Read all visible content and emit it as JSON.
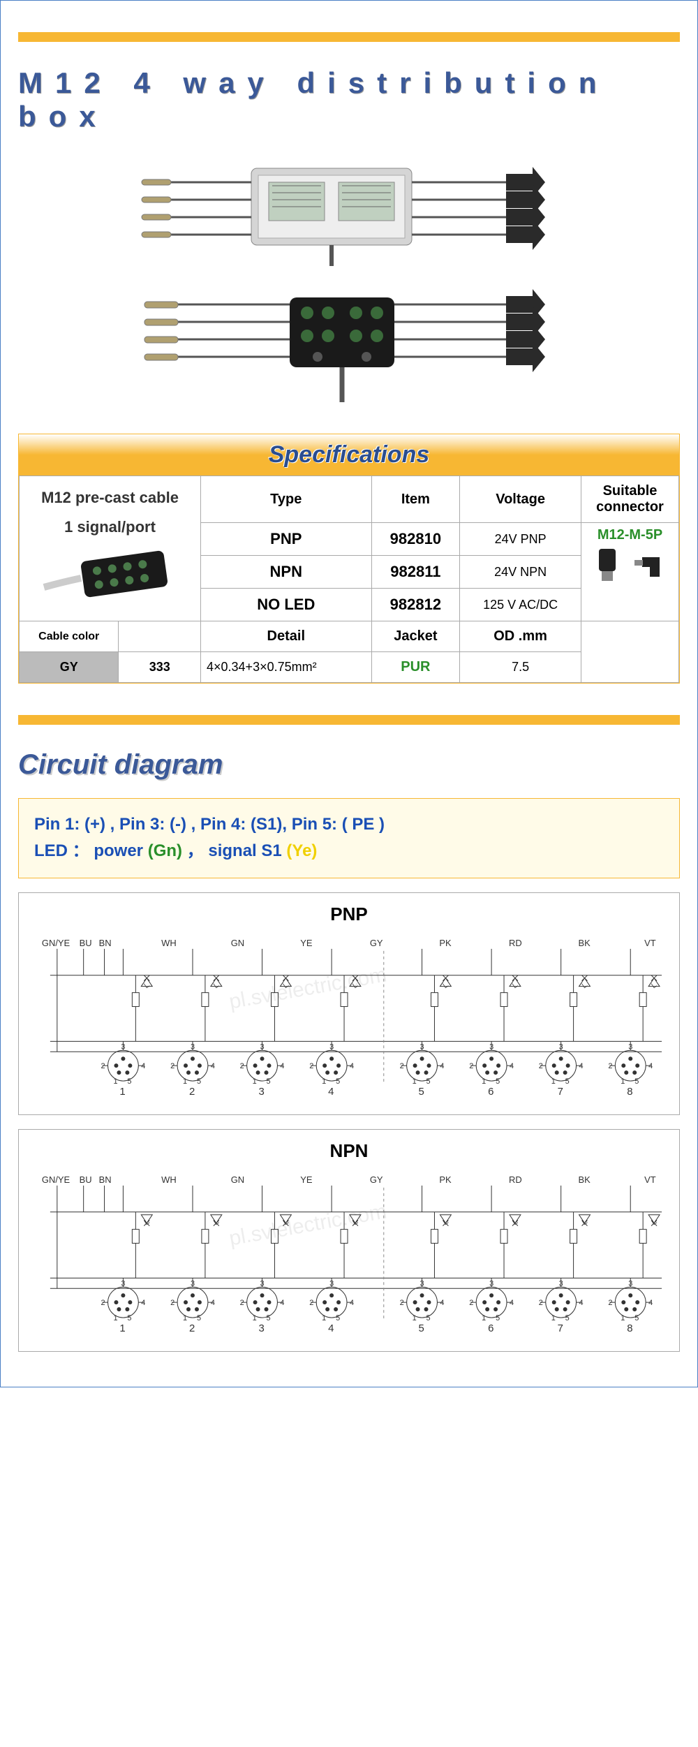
{
  "title": "M12 4 way distribution box",
  "spec_header": "Specifications",
  "cable_line1": "M12 pre-cast cable",
  "cable_line2": "1 signal/port",
  "columns": [
    "Type",
    "Item",
    "Voltage",
    "Suitable connector"
  ],
  "connector_model": "M12-M-5P",
  "rows": [
    {
      "type": "PNP",
      "item": "982810",
      "voltage": "24V PNP"
    },
    {
      "type": "NPN",
      "item": "982811",
      "voltage": "24V NPN"
    },
    {
      "type": "NO LED",
      "item": "982812",
      "voltage": "125 V AC/DC"
    }
  ],
  "detail_headers": [
    "Cable color",
    "",
    "Detail",
    "Jacket",
    "OD .mm"
  ],
  "detail_row": {
    "color": "GY",
    "code": "333",
    "detail": "4×0.34+3×0.75mm²",
    "jacket": "PUR",
    "od": "7.5"
  },
  "circuit_title": "Circuit diagram",
  "pin_line1_parts": [
    "Pin 1: (+) ,  ",
    "Pin 3: (-) ,  ",
    "Pin 4: (S1),  ",
    "Pin 5: ( PE )"
  ],
  "pin_line2_prefix": "LED ：",
  "pin_line2_power": "power",
  "pin_line2_gn": "(Gn)",
  "pin_line2_sep": " ，",
  "pin_line2_signal": "signal S1",
  "pin_line2_ye": "(Ye)",
  "wire_labels": [
    "GN/YE",
    "BU",
    "BN",
    "WH",
    "GN",
    "YE",
    "GY",
    "PK",
    "RD",
    "BK",
    "VT"
  ],
  "port_numbers": [
    "1",
    "2",
    "3",
    "4",
    "5",
    "6",
    "7",
    "8"
  ],
  "pin_numbers": [
    "2",
    "3",
    "4",
    "1",
    "5"
  ],
  "diagram_pnp": "PNP",
  "diagram_npn": "NPN",
  "watermark": "pl.svlelectric.com",
  "colors": {
    "title_blue": "#3b5998",
    "accent_yellow": "#f7b733",
    "border_blue": "#4a7fc5",
    "green": "#2a8f2a",
    "led_yellow": "#f0d000",
    "gray_bg": "#bbbbbb"
  }
}
